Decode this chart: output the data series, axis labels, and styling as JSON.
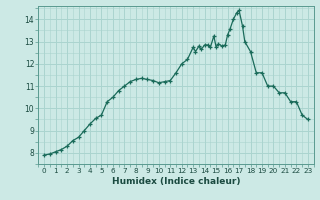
{
  "title": "",
  "xlabel": "Humidex (Indice chaleur)",
  "ylabel": "",
  "background_color": "#cce9e5",
  "grid_color": "#aad4cf",
  "line_color": "#1a6b5a",
  "marker_color": "#1a6b5a",
  "xlim": [
    -0.5,
    23.5
  ],
  "ylim": [
    7.5,
    14.6
  ],
  "yticks": [
    8,
    9,
    10,
    11,
    12,
    13,
    14
  ],
  "xticks": [
    0,
    1,
    2,
    3,
    4,
    5,
    6,
    7,
    8,
    9,
    10,
    11,
    12,
    13,
    14,
    15,
    16,
    17,
    18,
    19,
    20,
    21,
    22,
    23
  ],
  "x": [
    0,
    0.5,
    1,
    1.5,
    2,
    2.5,
    3,
    3.5,
    4,
    4.5,
    5,
    5.5,
    6,
    6.5,
    7,
    7.5,
    8,
    8.5,
    9,
    9.5,
    10,
    10.5,
    11,
    11.5,
    12,
    12.5,
    13,
    13.2,
    13.5,
    13.7,
    14,
    14.3,
    14.5,
    14.8,
    15,
    15.2,
    15.5,
    15.8,
    16,
    16.2,
    16.5,
    16.8,
    17,
    17.3,
    17.5,
    18,
    18.5,
    19,
    19.5,
    20,
    20.5,
    21,
    21.5,
    22,
    22.5,
    23
  ],
  "y": [
    7.9,
    7.95,
    8.05,
    8.15,
    8.3,
    8.55,
    8.7,
    9.0,
    9.3,
    9.55,
    9.7,
    10.3,
    10.5,
    10.8,
    11.0,
    11.2,
    11.3,
    11.35,
    11.3,
    11.25,
    11.15,
    11.2,
    11.25,
    11.6,
    12.0,
    12.2,
    12.75,
    12.55,
    12.8,
    12.65,
    12.85,
    12.85,
    12.75,
    13.25,
    12.75,
    12.9,
    12.8,
    12.85,
    13.3,
    13.55,
    14.0,
    14.3,
    14.4,
    13.7,
    13.0,
    12.55,
    11.6,
    11.6,
    11.0,
    11.0,
    10.7,
    10.7,
    10.3,
    10.3,
    9.7,
    9.5
  ]
}
